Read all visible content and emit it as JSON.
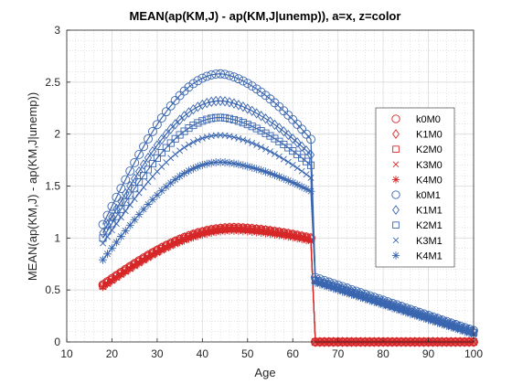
{
  "chart_data": {
    "type": "scatter",
    "title": "MEAN(ap(KM,J) - ap(KM,J|unemp)), a=x, z=color",
    "xlabel": "Age",
    "ylabel": "MEAN(ap(KM,J) - ap(KM,J|unemp))",
    "xlim": [
      10,
      100
    ],
    "ylim": [
      0,
      3
    ],
    "xticks": [
      10,
      20,
      30,
      40,
      50,
      60,
      70,
      80,
      90,
      100
    ],
    "yticks": [
      0,
      0.5,
      1,
      1.5,
      2,
      2.5,
      3
    ],
    "grid": true,
    "minor_grid": true,
    "legend_position": "right",
    "colors": {
      "z0": "#d62728",
      "z1": "#3a66b0"
    },
    "x_start": 18,
    "x_end": 100,
    "retire_age": 65,
    "series": [
      {
        "name": "k0M0",
        "color": "#d62728",
        "marker": "circle",
        "x18": 0.55,
        "peak": 1.1,
        "peak_age": 47,
        "at64": 1.0,
        "at65": 0.0,
        "at100": 0.0
      },
      {
        "name": "K1M0",
        "color": "#d62728",
        "marker": "diamond",
        "x18": 0.55,
        "peak": 1.1,
        "peak_age": 47,
        "at64": 1.0,
        "at65": 0.0,
        "at100": 0.0
      },
      {
        "name": "K2M0",
        "color": "#d62728",
        "marker": "square",
        "x18": 0.54,
        "peak": 1.09,
        "peak_age": 47,
        "at64": 0.99,
        "at65": 0.0,
        "at100": 0.0
      },
      {
        "name": "K3M0",
        "color": "#d62728",
        "marker": "x",
        "x18": 0.53,
        "peak": 1.08,
        "peak_age": 47,
        "at64": 0.98,
        "at65": 0.0,
        "at100": 0.0
      },
      {
        "name": "K4M0",
        "color": "#d62728",
        "marker": "asterisk",
        "x18": 0.53,
        "peak": 1.07,
        "peak_age": 47,
        "at64": 0.97,
        "at65": 0.0,
        "at100": 0.0
      },
      {
        "name": "k0M1",
        "color": "#3a66b0",
        "marker": "circle",
        "x18": 1.13,
        "peak": 2.58,
        "peak_age": 44,
        "at64": 1.95,
        "at65": 0.62,
        "at100": 0.11
      },
      {
        "name": "K1M1",
        "color": "#3a66b0",
        "marker": "diamond",
        "x18": 1.05,
        "peak": 2.32,
        "peak_age": 44,
        "at64": 1.8,
        "at65": 0.6,
        "at100": 0.1
      },
      {
        "name": "K2M1",
        "color": "#3a66b0",
        "marker": "square",
        "x18": 1.0,
        "peak": 2.16,
        "peak_age": 44,
        "at64": 1.7,
        "at65": 0.59,
        "at100": 0.09
      },
      {
        "name": "K3M1",
        "color": "#3a66b0",
        "marker": "x",
        "x18": 0.95,
        "peak": 1.99,
        "peak_age": 44,
        "at64": 1.58,
        "at65": 0.58,
        "at100": 0.08
      },
      {
        "name": "K4M1",
        "color": "#3a66b0",
        "marker": "asterisk",
        "x18": 0.79,
        "peak": 1.73,
        "peak_age": 44,
        "at64": 1.45,
        "at65": 0.57,
        "at100": 0.07
      }
    ]
  }
}
